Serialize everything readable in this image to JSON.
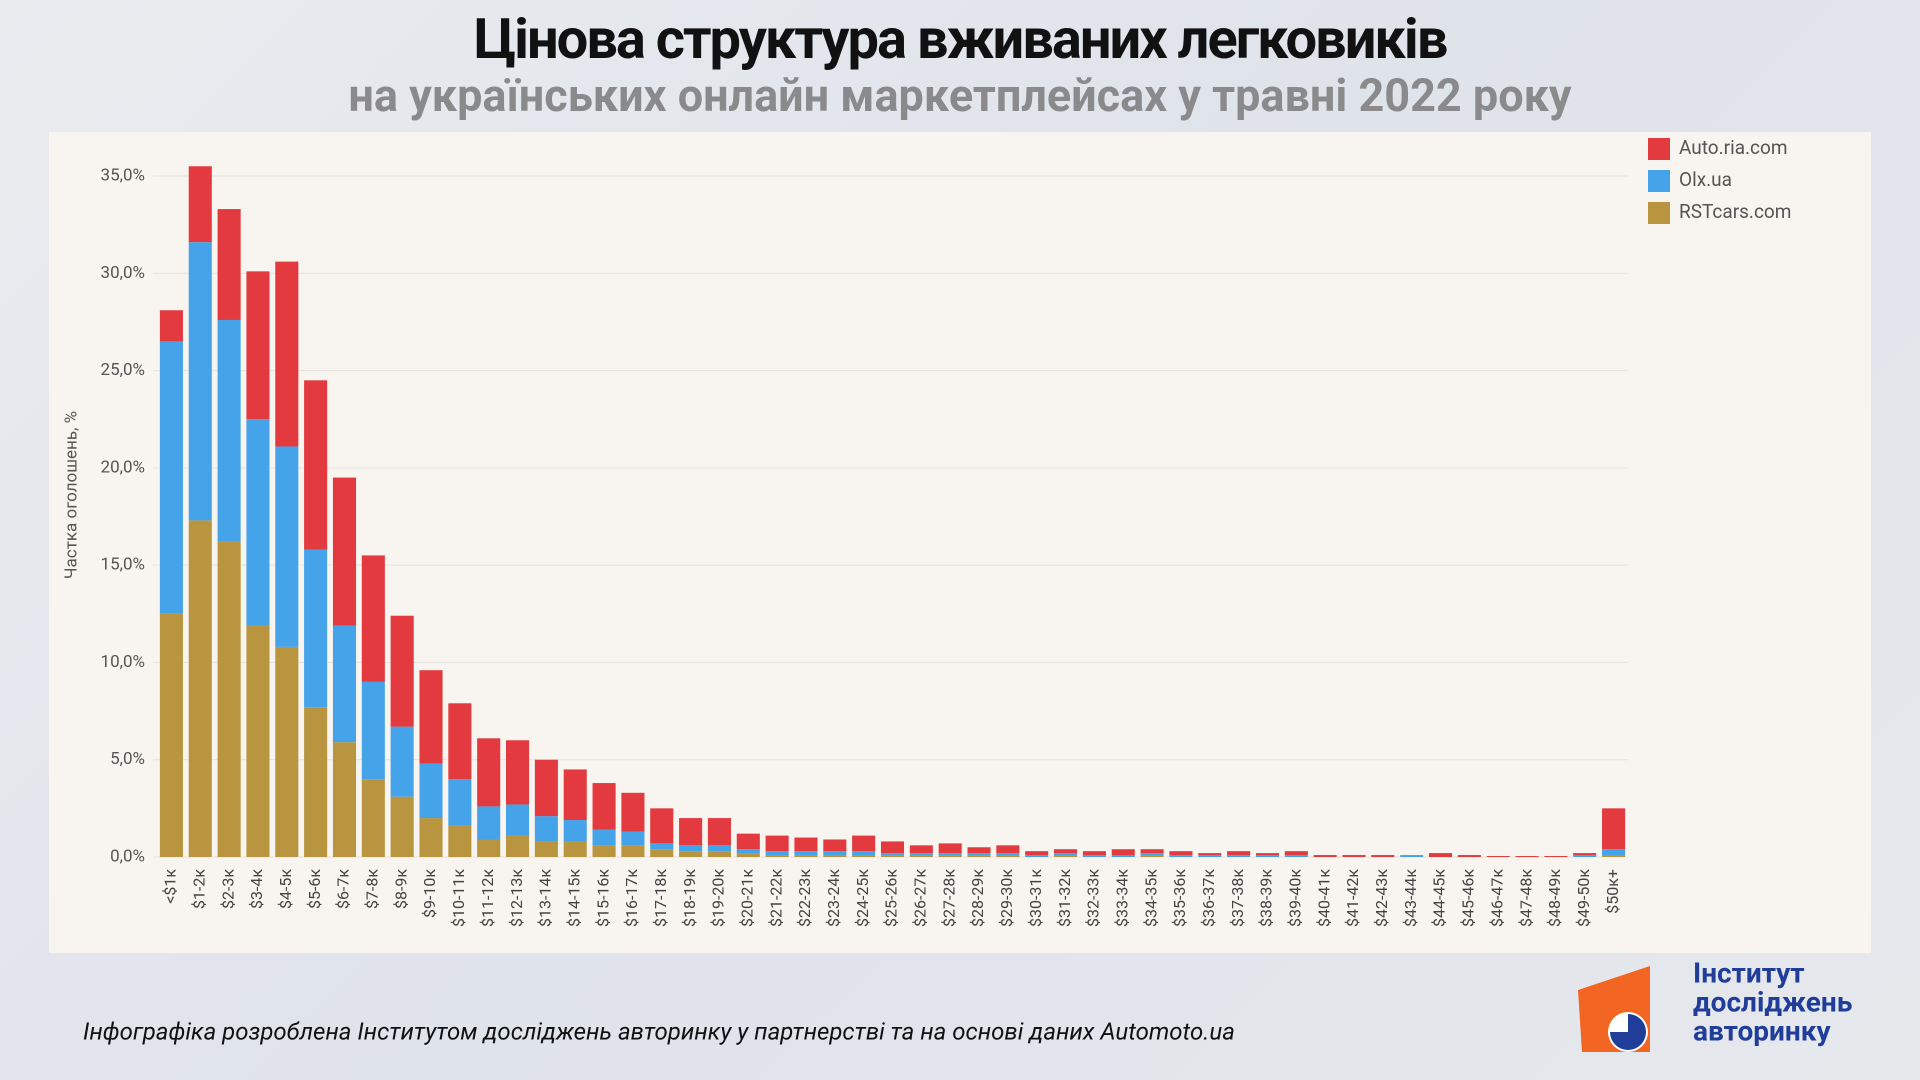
{
  "chart_data": {
    "type": "stacked_bar",
    "title": "Цінова структура вживаних легковиків",
    "subtitle": "на українських онлайн маркетплейсах у травні 2022 року",
    "y_label": "Частка оголошень, %",
    "footer": "Інфографіка розроблена Інститутом досліджень авторинку у партнерстві та на основі даних Automoto.ua",
    "logo": [
      "Інститут",
      "досліджень",
      "авторинку"
    ],
    "legend_position": "upper right",
    "grid": true,
    "ylim": [
      0,
      35
    ],
    "yticks": [
      {
        "value": 0,
        "label": "0,0%"
      },
      {
        "value": 5,
        "label": "5,0%"
      },
      {
        "value": 10,
        "label": "10,0%"
      },
      {
        "value": 15,
        "label": "15,0%"
      },
      {
        "value": 20,
        "label": "20,0%"
      },
      {
        "value": 25,
        "label": "25,0%"
      },
      {
        "value": 30,
        "label": "30,0%"
      },
      {
        "value": 35,
        "label": "35,0%"
      }
    ],
    "categories": [
      "<$1к",
      "$1-2к",
      "$2-3к",
      "$3-4к",
      "$4-5к",
      "$5-6к",
      "$6-7к",
      "$7-8к",
      "$8-9к",
      "$9-10к",
      "$10-11к",
      "$11-12к",
      "$12-13к",
      "$13-14к",
      "$14-15к",
      "$15-16к",
      "$16-17к",
      "$17-18к",
      "$18-19к",
      "$19-20к",
      "$20-21к",
      "$21-22к",
      "$22-23к",
      "$23-24к",
      "$24-25к",
      "$25-26к",
      "$26-27к",
      "$27-28к",
      "$28-29к",
      "$29-30к",
      "$30-31к",
      "$31-32к",
      "$32-33к",
      "$33-34к",
      "$34-35к",
      "$35-36к",
      "$36-37к",
      "$37-38к",
      "$38-39к",
      "$39-40к",
      "$40-41к",
      "$41-42к",
      "$42-43к",
      "$43-44к",
      "$44-45к",
      "$45-46к",
      "$46-47к",
      "$47-48к",
      "$48-49к",
      "$49-50к",
      "$50к+"
    ],
    "series": [
      {
        "name": "RSTcars.com",
        "color": "#b8953e",
        "values": [
          12.5,
          17.3,
          16.2,
          11.9,
          10.8,
          7.7,
          5.9,
          4.0,
          3.1,
          2.0,
          1.6,
          0.9,
          1.1,
          0.8,
          0.8,
          0.6,
          0.6,
          0.4,
          0.3,
          0.3,
          0.2,
          0.1,
          0.1,
          0.1,
          0.1,
          0.1,
          0.1,
          0.1,
          0.1,
          0.1,
          0.0,
          0.1,
          0.0,
          0.0,
          0.1,
          0.0,
          0.0,
          0.0,
          0.0,
          0.0,
          0.0,
          0.0,
          0.0,
          0.0,
          0.0,
          0.0,
          0.0,
          0.0,
          0.0,
          0.0,
          0.1
        ]
      },
      {
        "name": "Olx.ua",
        "color": "#45a3ea",
        "values": [
          14.0,
          14.3,
          11.4,
          10.6,
          10.3,
          8.1,
          6.0,
          5.0,
          3.6,
          2.8,
          2.4,
          1.7,
          1.6,
          1.3,
          1.1,
          0.8,
          0.7,
          0.3,
          0.3,
          0.3,
          0.2,
          0.2,
          0.2,
          0.2,
          0.2,
          0.1,
          0.1,
          0.1,
          0.1,
          0.1,
          0.1,
          0.1,
          0.1,
          0.1,
          0.1,
          0.1,
          0.1,
          0.1,
          0.1,
          0.1,
          0.0,
          0.0,
          0.0,
          0.1,
          0.0,
          0.0,
          0.0,
          0.0,
          0.0,
          0.1,
          0.3
        ]
      },
      {
        "name": "Auto.ria.com",
        "color": "#e23a3e",
        "values": [
          1.6,
          3.9,
          5.7,
          7.6,
          9.5,
          8.7,
          7.6,
          6.5,
          5.7,
          4.8,
          3.9,
          3.5,
          3.3,
          2.9,
          2.6,
          2.4,
          2.0,
          1.8,
          1.4,
          1.4,
          0.8,
          0.8,
          0.7,
          0.6,
          0.8,
          0.6,
          0.4,
          0.5,
          0.3,
          0.4,
          0.2,
          0.2,
          0.2,
          0.3,
          0.2,
          0.2,
          0.1,
          0.2,
          0.1,
          0.2,
          0.1,
          0.1,
          0.1,
          0.0,
          0.2,
          0.1,
          0.05,
          0.05,
          0.05,
          0.1,
          2.1
        ]
      }
    ]
  }
}
